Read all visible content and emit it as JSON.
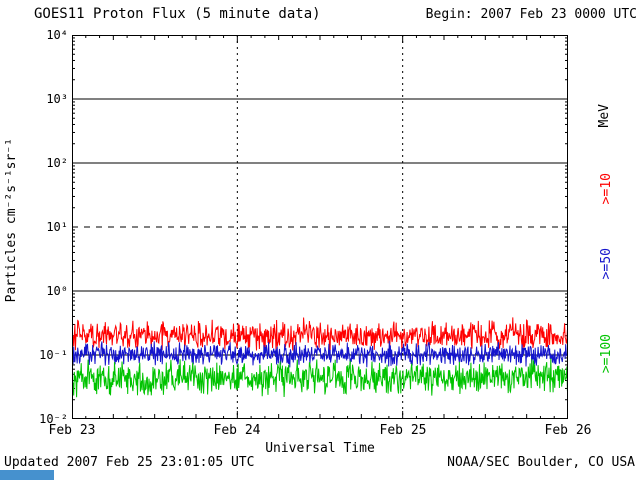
{
  "header": {
    "title": "GOES11 Proton Flux (5 minute data)",
    "begin_label": "Begin: 2007 Feb 23 0000 UTC"
  },
  "footer": {
    "updated": "Updated 2007 Feb 25 23:01:05 UTC",
    "source": "NOAA/SEC Boulder, CO USA",
    "corner_bar_color": "#4691ce"
  },
  "chart_data": {
    "type": "line",
    "title": "GOES11 Proton Flux (5 minute data)",
    "xlabel": "Universal Time",
    "ylabel": "Particles cm⁻²s⁻¹sr⁻¹",
    "right_axis_label": "MeV",
    "x_tick_labels": [
      "Feb 23",
      "Feb 24",
      "Feb 25",
      "Feb 26"
    ],
    "y_tick_labels": [
      "10⁴",
      "10³",
      "10²",
      "10¹",
      "10⁰",
      "10⁻¹",
      "10⁻²"
    ],
    "y_log_min": -2,
    "y_log_max": 4,
    "y_axis_scale": "log10, particles cm^-2 s^-1 sr^-1",
    "x_days": 3,
    "x_start": "2007 Feb 23 0000 UTC",
    "x_end": "2007 Feb 26 0000 UTC",
    "points_per_series": 864,
    "cadence": "5 minute",
    "threshold_dashed_line": 10,
    "solid_gridlines": [
      1000,
      100,
      1,
      0.1
    ],
    "day_boundary_dashed_lines": [
      "Feb 24",
      "Feb 25"
    ],
    "grid_color": "#000000",
    "seed": 20070223,
    "series": [
      {
        "label": ">=10",
        "name": ">=10 MeV protons",
        "color": "#ff0000",
        "approx_min_flux": 0.09,
        "approx_typical_flux": 0.2,
        "approx_max_flux": 0.6,
        "log10_min": -0.95,
        "log10_max": -0.45,
        "spike_prob": 0.05,
        "spike_decades": 0.25
      },
      {
        "label": ">=50",
        "name": ">=50 MeV protons",
        "color": "#1414cc",
        "approx_min_flux": 0.06,
        "approx_typical_flux": 0.1,
        "approx_max_flux": 0.2,
        "log10_min": -1.2,
        "log10_max": -0.78,
        "spike_prob": 0.03,
        "spike_decades": 0.12
      },
      {
        "label": ">=100",
        "name": ">=100 MeV protons",
        "color": "#00c300",
        "approx_min_flux": 0.02,
        "approx_typical_flux": 0.045,
        "approx_max_flux": 0.1,
        "log10_min": -1.68,
        "log10_max": -1.05,
        "spike_prob": 0.04,
        "spike_decades": 0.18
      }
    ],
    "legend_position": "right-outside-rotated",
    "grid": true
  }
}
